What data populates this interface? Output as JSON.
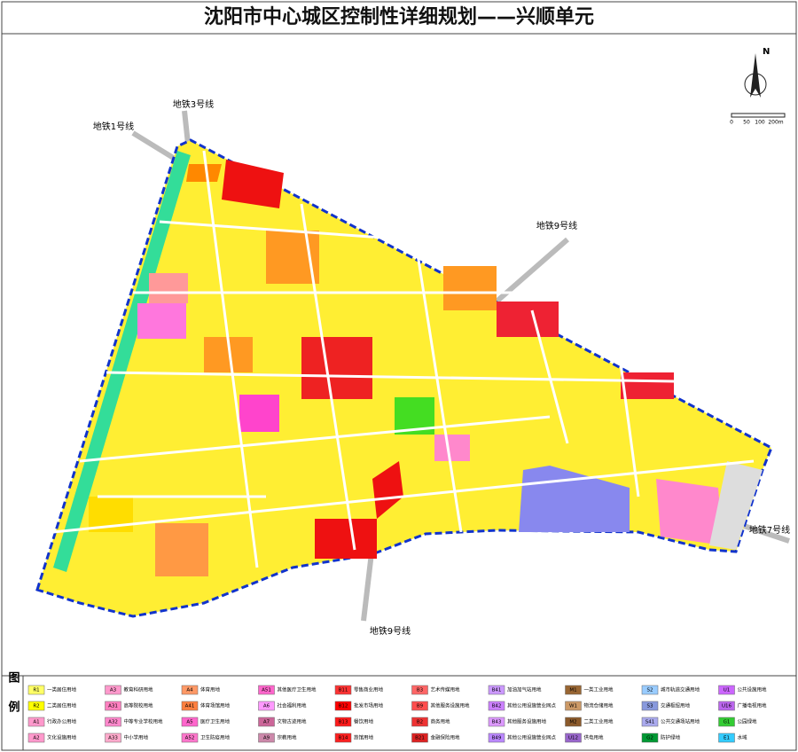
{
  "header": {
    "title": "沈阳市中心城区控制性详细规划——兴顺单元"
  },
  "map": {
    "north": "N",
    "scale": [
      "0",
      "50",
      "100",
      "200m"
    ],
    "labels": [
      "地铁3号线",
      "地铁1号线",
      "地铁9号线",
      "地铁7号线",
      "地铁9号线"
    ]
  },
  "legend": {
    "title": "图例",
    "items": [
      {
        "code": "R1",
        "label": "一类居住用地",
        "color": "#ffff66"
      },
      {
        "code": "A3",
        "label": "教育科研用地",
        "color": "#ff99cc"
      },
      {
        "code": "A4",
        "label": "体育用地",
        "color": "#ff9966"
      },
      {
        "code": "A51",
        "label": "其他医疗卫生用地",
        "color": "#ff66cc"
      },
      {
        "code": "B11",
        "label": "零售商业用地",
        "color": "#ff3333"
      },
      {
        "code": "B3",
        "label": "艺术传媒用地",
        "color": "#ff6666"
      },
      {
        "code": "B41",
        "label": "加油加气站用地",
        "color": "#cc99ff"
      },
      {
        "code": "M1",
        "label": "一类工业用地",
        "color": "#996633"
      },
      {
        "code": "S2",
        "label": "城市轨道交通用地",
        "color": "#99ccff"
      },
      {
        "code": "U1",
        "label": "公共设施用地",
        "color": "#cc66ff"
      },
      {
        "code": "R2",
        "label": "二类居住用地",
        "color": "#ffff00"
      },
      {
        "code": "A31",
        "label": "高等院校用地",
        "color": "#ff80c0"
      },
      {
        "code": "A41",
        "label": "体育场馆用地",
        "color": "#ff8040"
      },
      {
        "code": "A6",
        "label": "社会福利用地",
        "color": "#ff99ff"
      },
      {
        "code": "B12",
        "label": "批发市场用地",
        "color": "#ff0000"
      },
      {
        "code": "B9",
        "label": "其他服务设施用地",
        "color": "#ff4d4d"
      },
      {
        "code": "B42",
        "label": "其他公用设施营业网点",
        "color": "#cc80ff"
      },
      {
        "code": "W1",
        "label": "物流仓储用地",
        "color": "#cc9966"
      },
      {
        "code": "S3",
        "label": "交通枢纽用地",
        "color": "#8899dd"
      },
      {
        "code": "U16",
        "label": "广播电视用地",
        "color": "#bb66ee"
      },
      {
        "code": "A1",
        "label": "行政办公用地",
        "color": "#ff99cc"
      },
      {
        "code": "A32",
        "label": "中等专业学校用地",
        "color": "#ff88cc"
      },
      {
        "code": "A5",
        "label": "医疗卫生用地",
        "color": "#ff66cc"
      },
      {
        "code": "A7",
        "label": "文物古迹用地",
        "color": "#cc6699"
      },
      {
        "code": "B13",
        "label": "餐饮用地",
        "color": "#ff1a1a"
      },
      {
        "code": "B2",
        "label": "商务用地",
        "color": "#ee3333"
      },
      {
        "code": "B43",
        "label": "其他服务设施用地",
        "color": "#dd99ff"
      },
      {
        "code": "M2",
        "label": "二类工业用地",
        "color": "#8b5a2b"
      },
      {
        "code": "S41",
        "label": "公共交通场站用地",
        "color": "#aaaaee"
      },
      {
        "code": "G1",
        "label": "公园绿地",
        "color": "#33cc33"
      },
      {
        "code": "A2",
        "label": "文化设施用地",
        "color": "#ff99cc"
      },
      {
        "code": "A33",
        "label": "中小学用地",
        "color": "#ffaacc"
      },
      {
        "code": "A52",
        "label": "卫生防疫用地",
        "color": "#ff77cc"
      },
      {
        "code": "A9",
        "label": "宗教用地",
        "color": "#cc88aa"
      },
      {
        "code": "B14",
        "label": "旅馆用地",
        "color": "#ff2020"
      },
      {
        "code": "B21",
        "label": "金融保险用地",
        "color": "#dd2222"
      },
      {
        "code": "B49",
        "label": "其他公用设施营业网点",
        "color": "#bb88ff"
      },
      {
        "code": "U12",
        "label": "供电用地",
        "color": "#9966cc"
      },
      {
        "code": "G2",
        "label": "防护绿地",
        "color": "#009933"
      },
      {
        "code": "E1",
        "label": "水域",
        "color": "#33ccff"
      }
    ]
  }
}
